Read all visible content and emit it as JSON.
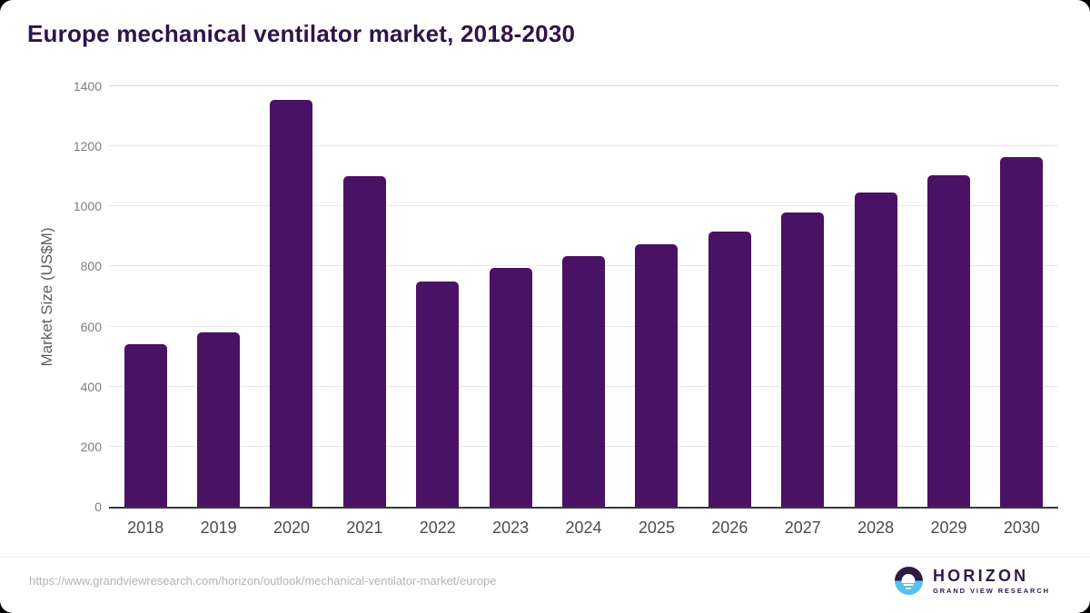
{
  "title": "Europe mechanical ventilator market, 2018-2030",
  "chart_data": {
    "type": "bar",
    "title": "Europe mechanical ventilator market, 2018-2030",
    "categories": [
      "2018",
      "2019",
      "2020",
      "2021",
      "2022",
      "2023",
      "2024",
      "2025",
      "2026",
      "2027",
      "2028",
      "2029",
      "2030"
    ],
    "values": [
      540,
      580,
      1355,
      1100,
      750,
      795,
      835,
      875,
      915,
      980,
      1045,
      1105,
      1165
    ],
    "xlabel": "",
    "ylabel": "Market Size (US$M)",
    "ylim": [
      0,
      1400
    ],
    "yticks": [
      0,
      200,
      400,
      600,
      800,
      1000,
      1200,
      1400
    ],
    "grid": "horizontal",
    "legend": "none",
    "bar_color": "#4a1264"
  },
  "colors": {
    "title": "#2e1449",
    "bar": "#4a1264",
    "gridline": "#e8e8e8",
    "axis_line": "#3a3a3a",
    "logo_dark": "#2d1a45",
    "logo_blue": "#56c0ea"
  },
  "footer": {
    "source_url": "https://www.grandviewresearch.com/horizon/outlook/mechanical-ventilator-market/europe",
    "logo": {
      "name": "HORIZON",
      "tagline": "GRAND VIEW RESEARCH"
    }
  }
}
